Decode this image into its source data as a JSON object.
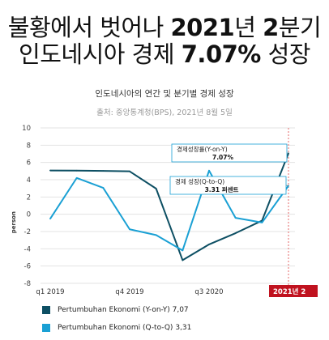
{
  "headline": {
    "line1_a": "불황에서 벗어나 ",
    "line1_b": "2021",
    "line1_c": "년 ",
    "line1_d": "2",
    "line1_e": "분기",
    "line2_a": "인도네시아 경제 ",
    "line2_b": "7.07%",
    "line2_c": " 성장"
  },
  "chart_data": {
    "type": "line",
    "title": "인도네시아의 연간 및 분기별 경제 성장",
    "subtitle": "출처: 중앙통계청(BPS), 2021년 8월 5일",
    "ylabel": "person",
    "ylim": [
      -8,
      10
    ],
    "yticks": [
      -8,
      -6,
      -4,
      -2,
      0,
      2,
      4,
      6,
      8,
      10
    ],
    "grid": true,
    "x": [
      "q1 2019",
      "q2 2019",
      "q3 2019",
      "q4 2019",
      "q1 2020",
      "q2 2020",
      "q3 2020",
      "q4 2020",
      "q1 2021",
      "q2 2021"
    ],
    "xtick_labels": [
      "q1 2019",
      "q4 2019",
      "q3 2020"
    ],
    "highlight_label": "2021년 2",
    "series": [
      {
        "name": "Pertumbuhan Ekonomi (Y-on-Y)",
        "legend_value": "7,07",
        "color": "#0d4f63",
        "values": [
          5.07,
          5.05,
          5.02,
          4.97,
          2.97,
          -5.32,
          -3.49,
          -2.19,
          -0.74,
          7.07
        ]
      },
      {
        "name": "Pertumbuhan Ekonomi (Q-to-Q)",
        "legend_value": "3,31",
        "color": "#1aa0d4",
        "values": [
          -0.52,
          4.2,
          3.06,
          -1.74,
          -2.41,
          -4.19,
          5.05,
          -0.42,
          -0.96,
          3.31
        ]
      }
    ],
    "annotations": [
      {
        "series": 0,
        "line1": "경제성장률(Y-on-Y)",
        "line2": "7.07%"
      },
      {
        "series": 1,
        "line1": "경제 성장(Q-to-Q)",
        "line2": "3.31 퍼센트"
      }
    ]
  }
}
